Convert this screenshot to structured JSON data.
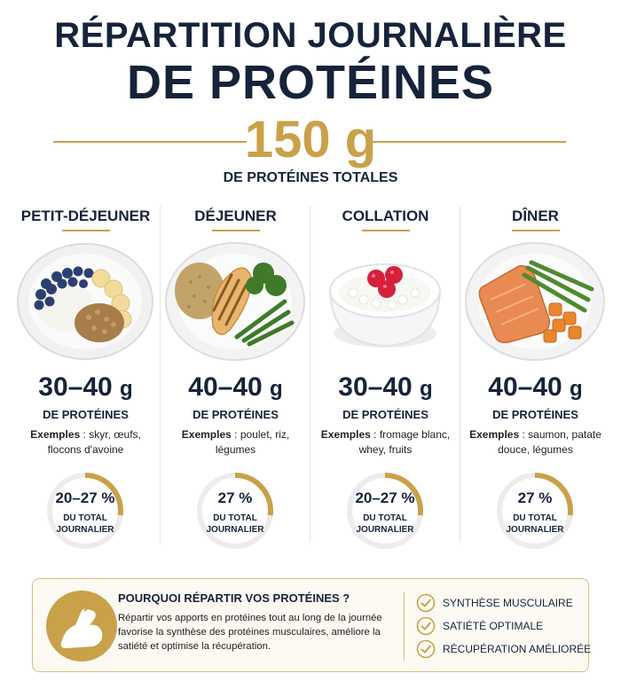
{
  "header": {
    "title_line1": "RÉPARTITION JOURNALIÈRE",
    "title_line2": "DE PROTÉINES",
    "total_amount": "150 g",
    "total_label": "DE PROTÉINES TOTALES"
  },
  "meals": [
    {
      "name": "PETIT-DÉJEUNER",
      "amount": "30–40",
      "unit": "g",
      "protein_label": "DE PROTÉINES",
      "examples_prefix": "Exemples",
      "examples": " : skyr, œufs, flocons d'avoine",
      "share": "20–27 %",
      "share_fraction": 0.27,
      "share_label": "DU TOTAL JOURNALIER"
    },
    {
      "name": "DÉJEUNER",
      "amount": "40–40",
      "unit": "g",
      "protein_label": "DE PROTÉINES",
      "examples_prefix": "Exemples",
      "examples": " : poulet, riz, légumes",
      "share": "27 %",
      "share_fraction": 0.27,
      "share_label": "DU TOTAL JOURNALIER"
    },
    {
      "name": "COLLATION",
      "amount": "30–40",
      "unit": "g",
      "protein_label": "DE PROTÉINES",
      "examples_prefix": "Exemples",
      "examples": " : fromage blanc, whey, fruits",
      "share": "20–27 %",
      "share_fraction": 0.27,
      "share_label": "DU TOTAL JOURNALIER"
    },
    {
      "name": "DÎNER",
      "amount": "40–40",
      "unit": "g",
      "protein_label": "DE PROTÉINES",
      "examples_prefix": "Exemples",
      "examples": " : saumon, patate douce, légumes",
      "share": "27 %",
      "share_fraction": 0.27,
      "share_label": "DU TOTAL JOURNALIER"
    }
  ],
  "info": {
    "title": "POURQUOI RÉPARTIR VOS PROTÉINES ?",
    "body": "Répartir vos apports en protéines tout au long de la journée favorise la synthèse des protéines musculaires, améliore la satiété et optimise la récupération.",
    "icon": "flexed-arm-icon",
    "benefits": [
      "SYNTHÈSE MUSCULAIRE",
      "SATIÉTÉ OPTIMALE",
      "RÉCUPÉRATION AMÉLIORÉE"
    ]
  },
  "colors": {
    "navy": "#16233a",
    "gold": "#c9a14a",
    "ring_track": "#ececec"
  }
}
